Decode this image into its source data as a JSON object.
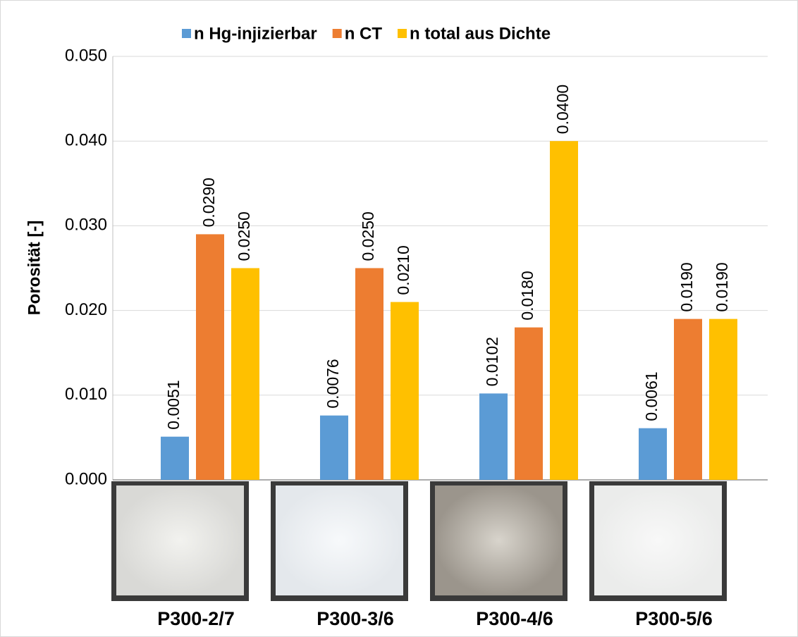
{
  "chart_data": {
    "type": "bar",
    "y_label": "Porosität [-]",
    "categories": [
      "P300-2/7",
      "P300-3/6",
      "P300-4/6",
      "P300-5/6"
    ],
    "series": [
      {
        "name": "n Hg-injizierbar",
        "color": "#5b9bd5",
        "values": [
          0.0051,
          0.0076,
          0.0102,
          0.0061
        ]
      },
      {
        "name": "n CT",
        "color": "#ed7d31",
        "values": [
          0.029,
          0.025,
          0.018,
          0.019
        ],
        "value_labels": [
          "0.0290",
          "0.0250",
          "0.0180",
          "0.0190"
        ]
      },
      {
        "name": "n total aus Dichte",
        "color": "#ffc000",
        "values": [
          0.025,
          0.021,
          0.04,
          0.019
        ],
        "value_labels": [
          "0.0250",
          "0.0210",
          "0.0400",
          "0.0190"
        ]
      }
    ],
    "ylim": [
      0,
      0.05
    ],
    "yticks": [
      {
        "value": 0,
        "label": "0.000"
      },
      {
        "value": 0.01,
        "label": "0.010"
      },
      {
        "value": 0.02,
        "label": "0.020"
      },
      {
        "value": 0.03,
        "label": "0.030"
      },
      {
        "value": 0.04,
        "label": "0.040"
      },
      {
        "value": 0.05,
        "label": "0.050"
      }
    ],
    "grid": true,
    "legend": "top"
  }
}
